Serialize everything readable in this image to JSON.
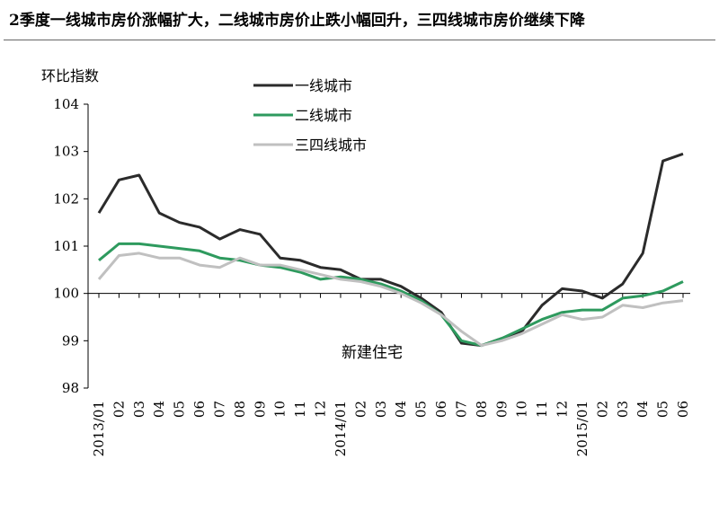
{
  "title": "2季度一线城市房价涨幅扩大，二线城市房价止跌小幅回升，三四线城市房价继续下降",
  "chart_data": {
    "type": "line",
    "ylabel": "环比指数",
    "annotation": "新建住宅",
    "ylim": [
      98,
      104
    ],
    "yticks": [
      98,
      99,
      100,
      101,
      102,
      103,
      104
    ],
    "baseline": 100,
    "legend_position": "top-center",
    "categories": [
      "2013/01",
      "02",
      "03",
      "04",
      "05",
      "06",
      "07",
      "08",
      "09",
      "10",
      "11",
      "12",
      "2014/01",
      "02",
      "03",
      "04",
      "05",
      "06",
      "07",
      "08",
      "09",
      "10",
      "11",
      "12",
      "2015/01",
      "02",
      "03",
      "04",
      "05",
      "06"
    ],
    "series": [
      {
        "name": "一线城市",
        "color": "#2b2b2b",
        "values": [
          101.7,
          102.4,
          102.5,
          101.7,
          101.5,
          101.4,
          101.15,
          101.35,
          101.25,
          100.75,
          100.7,
          100.55,
          100.5,
          100.3,
          100.3,
          100.15,
          99.9,
          99.6,
          98.95,
          98.9,
          99.05,
          99.2,
          99.75,
          100.1,
          100.05,
          99.9,
          100.2,
          100.85,
          102.8,
          102.95
        ]
      },
      {
        "name": "二线城市",
        "color": "#2e9a5e",
        "values": [
          100.7,
          101.05,
          101.05,
          101.0,
          100.95,
          100.9,
          100.75,
          100.7,
          100.6,
          100.55,
          100.45,
          100.3,
          100.35,
          100.3,
          100.2,
          100.05,
          99.85,
          99.55,
          99.0,
          98.9,
          99.05,
          99.25,
          99.45,
          99.6,
          99.65,
          99.65,
          99.9,
          99.95,
          100.05,
          100.25
        ]
      },
      {
        "name": "三四线城市",
        "color": "#c0c0c0",
        "values": [
          100.3,
          100.8,
          100.85,
          100.75,
          100.75,
          100.6,
          100.55,
          100.75,
          100.6,
          100.6,
          100.5,
          100.4,
          100.3,
          100.25,
          100.15,
          100.0,
          99.8,
          99.55,
          99.2,
          98.9,
          99.0,
          99.15,
          99.35,
          99.55,
          99.45,
          99.5,
          99.75,
          99.7,
          99.8,
          99.85
        ]
      }
    ]
  }
}
